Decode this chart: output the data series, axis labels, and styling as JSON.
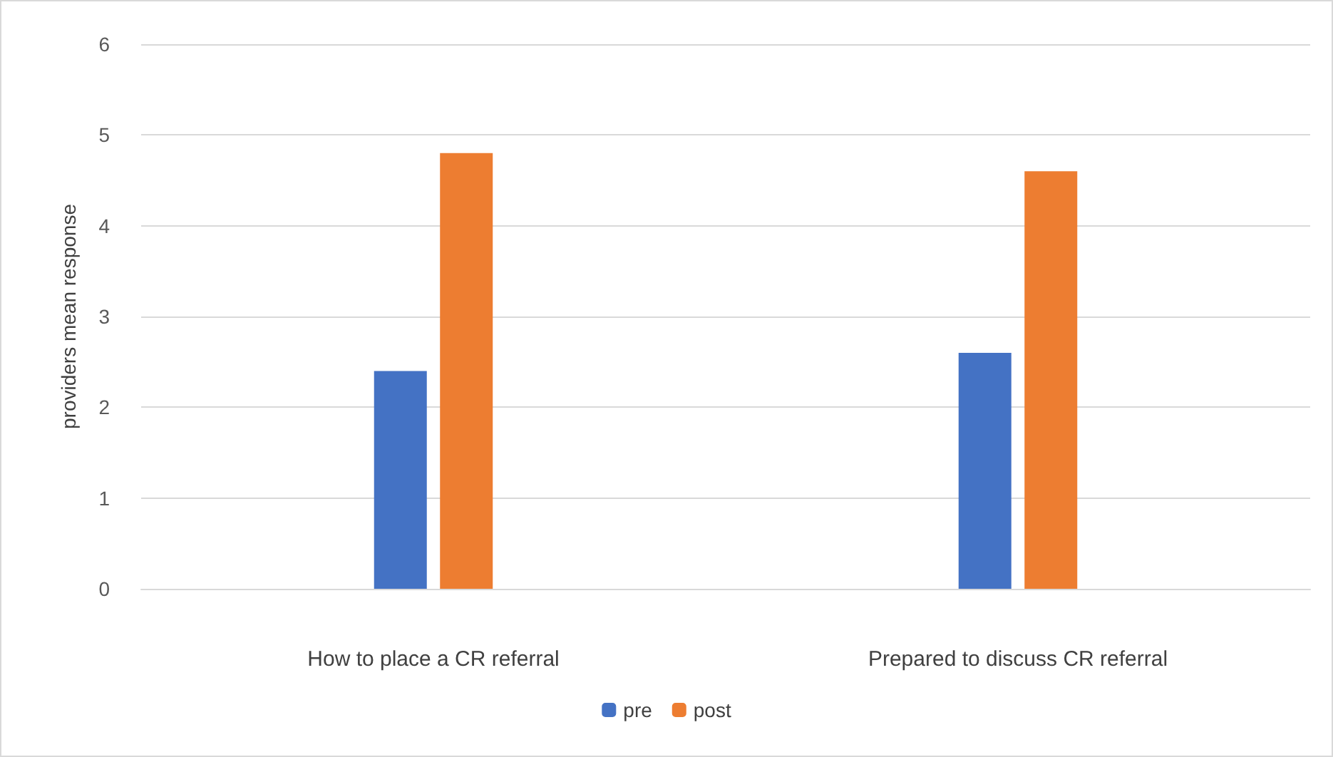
{
  "chart_data": {
    "type": "bar",
    "ylabel": "providers mean response",
    "categories": [
      "How to place a CR referral",
      "Prepared to discuss CR referral"
    ],
    "series": [
      {
        "name": "pre",
        "color": "#4472c4",
        "values": [
          2.4,
          2.6
        ]
      },
      {
        "name": "post",
        "color": "#ed7d31",
        "values": [
          4.8,
          4.6
        ]
      }
    ],
    "ylim": [
      0,
      6
    ],
    "yticks": [
      0,
      1,
      2,
      3,
      4,
      5,
      6
    ],
    "grid": "y",
    "legend": "bottom"
  }
}
